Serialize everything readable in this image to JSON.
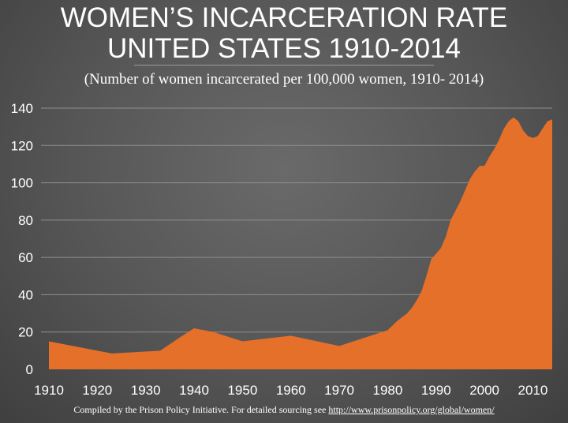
{
  "colors": {
    "area": "#E5702A",
    "gridline": "#8e8e8e",
    "text": "#ffffff"
  },
  "title_line1": "WOMEN’S INCARCERATION RATE",
  "title_line2": "UNITED STATES 1910-2014",
  "subtitle": "(Number of women incarcerated per 100,000 women, 1910- 2014)",
  "footer": {
    "text": "Compiled by the Prison Policy Initiative. For detailed sourcing see ",
    "link": "http://www.prisonpolicy.org/global/women/"
  },
  "chart_data": {
    "type": "area",
    "title": "WOMEN’S INCARCERATION RATE UNITED STATES 1910-2014",
    "subtitle": "(Number of women incarcerated per 100,000 women, 1910- 2014)",
    "xlabel": "",
    "ylabel": "",
    "xlim": [
      1910,
      2014
    ],
    "ylim": [
      0,
      140
    ],
    "grid": true,
    "xticks": [
      1910,
      1920,
      1930,
      1940,
      1950,
      1960,
      1970,
      1980,
      1990,
      2000,
      2010
    ],
    "yticks": [
      0,
      20,
      40,
      60,
      80,
      100,
      120,
      140
    ],
    "series": [
      {
        "x": [
          1910,
          1923,
          1933,
          1937,
          1940,
          1944,
          1950,
          1960,
          1970,
          1980,
          1982,
          1984,
          1985,
          1986,
          1987,
          1988,
          1989,
          1990,
          1991,
          1992,
          1993,
          1994,
          1995,
          1996,
          1997,
          1998,
          1999,
          2000,
          2001,
          2002,
          2003,
          2004,
          2005,
          2006,
          2007,
          2008,
          2009,
          2010,
          2011,
          2012,
          2013,
          2014
        ],
        "values": [
          15,
          8.5,
          10,
          17,
          22,
          20,
          15,
          18,
          12.5,
          21,
          26,
          30,
          33,
          37,
          42,
          50,
          59,
          62,
          65,
          71,
          80,
          85,
          90,
          96,
          102,
          106,
          109,
          109,
          114,
          118,
          123,
          129,
          133,
          135,
          133,
          128,
          125,
          124,
          125,
          129,
          133,
          134
        ]
      }
    ]
  }
}
